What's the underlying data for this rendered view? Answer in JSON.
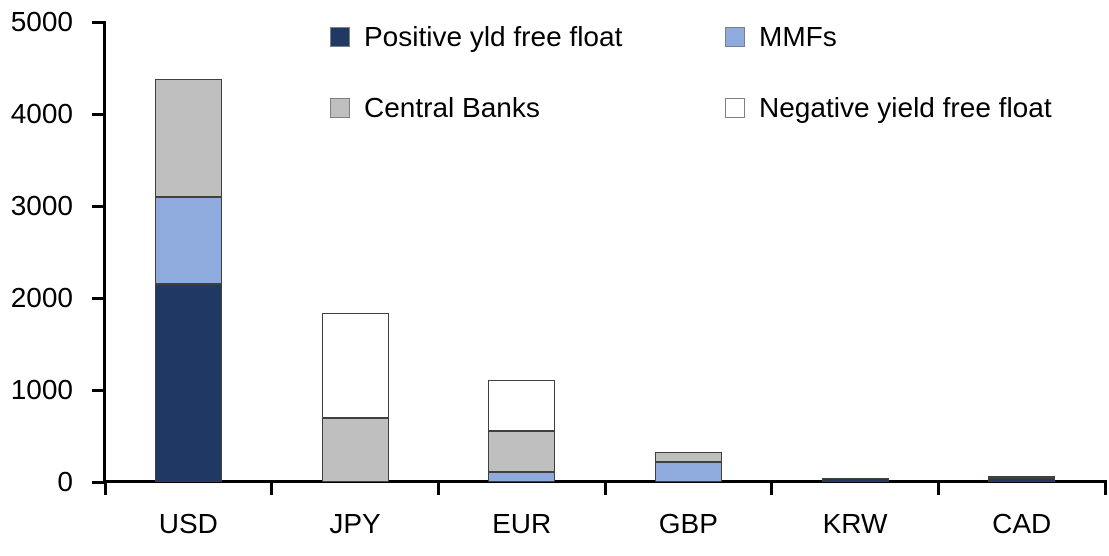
{
  "chart_data": {
    "type": "bar",
    "stacked": true,
    "title": "",
    "xlabel": "",
    "ylabel": "",
    "categories": [
      "USD",
      "JPY",
      "EUR",
      "GBP",
      "KRW",
      "CAD"
    ],
    "series": [
      {
        "name": "Positive yld free float",
        "color": "#1F3864",
        "values": [
          2150,
          0,
          0,
          0,
          40,
          40
        ]
      },
      {
        "name": "MMFs",
        "color": "#8FAADC",
        "values": [
          950,
          0,
          110,
          220,
          0,
          0
        ]
      },
      {
        "name": "Central Banks",
        "color": "#BFBFBF",
        "values": [
          1280,
          700,
          440,
          110,
          0,
          30
        ]
      },
      {
        "name": "Negative yield free float",
        "color": "#FFFFFF",
        "values": [
          0,
          1140,
          560,
          0,
          0,
          0
        ]
      }
    ],
    "ylim": [
      0,
      5000
    ],
    "ytick_interval": 1000,
    "yticks": [
      "0",
      "1000",
      "2000",
      "3000",
      "4000",
      "5000"
    ],
    "grid": false,
    "legend_position": "top",
    "axis_color": "#000000",
    "bar_border_color": "#404040"
  }
}
